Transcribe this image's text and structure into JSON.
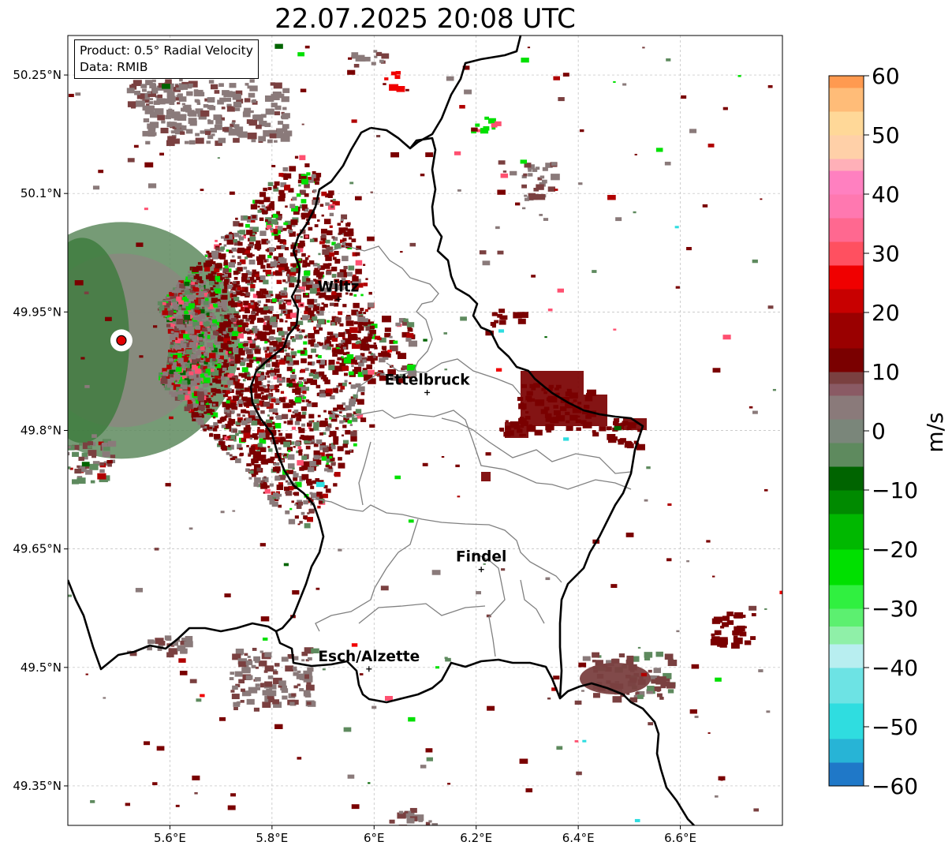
{
  "title": "22.07.2025 20:08 UTC",
  "info": {
    "product": "Product: 0.5° Radial Velocity",
    "data_source": "Data: RMIB"
  },
  "map": {
    "lon_range": [
      5.4,
      6.8
    ],
    "lat_range": [
      49.3,
      50.3
    ],
    "lon_ticks": [
      {
        "value": 5.6,
        "label": "5.6°E"
      },
      {
        "value": 5.8,
        "label": "5.8°E"
      },
      {
        "value": 6.0,
        "label": "6°E"
      },
      {
        "value": 6.2,
        "label": "6.2°E"
      },
      {
        "value": 6.4,
        "label": "6.4°E"
      },
      {
        "value": 6.6,
        "label": "6.6°E"
      }
    ],
    "lat_ticks": [
      {
        "value": 50.25,
        "label": "50.25°N"
      },
      {
        "value": 50.1,
        "label": "50.1°N"
      },
      {
        "value": 49.95,
        "label": "49.95°N"
      },
      {
        "value": 49.8,
        "label": "49.8°N"
      },
      {
        "value": 49.65,
        "label": "49.65°N"
      },
      {
        "value": 49.5,
        "label": "49.5°N"
      },
      {
        "value": 49.35,
        "label": "49.35°N"
      }
    ],
    "radar_site": {
      "lon": 5.505,
      "lat": 49.914,
      "color": "#e00000"
    },
    "cities": [
      {
        "name": "Wiltz",
        "lon": 5.93,
        "lat": 49.966
      },
      {
        "name": "Ettelbruck",
        "lon": 6.104,
        "lat": 49.848
      },
      {
        "name": "Findel",
        "lon": 6.21,
        "lat": 49.624
      },
      {
        "name": "Esch/Alzette",
        "lon": 5.99,
        "lat": 49.498
      }
    ]
  },
  "colorbar": {
    "label": "m/s",
    "min": -60,
    "max": 60,
    "ticks": [
      {
        "value": 60,
        "label": "60"
      },
      {
        "value": 50,
        "label": "50"
      },
      {
        "value": 40,
        "label": "40"
      },
      {
        "value": 30,
        "label": "30"
      },
      {
        "value": 20,
        "label": "20"
      },
      {
        "value": 10,
        "label": "10"
      },
      {
        "value": 0,
        "label": "0"
      },
      {
        "value": -10,
        "label": "−10"
      },
      {
        "value": -20,
        "label": "−20"
      },
      {
        "value": -30,
        "label": "−30"
      },
      {
        "value": -40,
        "label": "−40"
      },
      {
        "value": -50,
        "label": "−50"
      },
      {
        "value": -60,
        "label": "−60"
      }
    ],
    "colors": {
      "approaching_fast": "#1f78c8",
      "approaching_cyan": "#2fdde0",
      "approaching_light_cyan": "#b8eef0",
      "approaching_light_green": "#8ff0a8",
      "approaching_green": "#00e000",
      "approaching_dark_green": "#006400",
      "near_zero_green_gray": "#5e8a5e",
      "near_zero_gray": "#8a7a7a",
      "receding_brown": "#7a4040",
      "receding_dark_red": "#7a0000",
      "receding_red": "#f00000",
      "receding_pink": "#ff80c0",
      "receding_light_orange": "#ffd898",
      "receding_orange": "#ff9a50"
    }
  }
}
